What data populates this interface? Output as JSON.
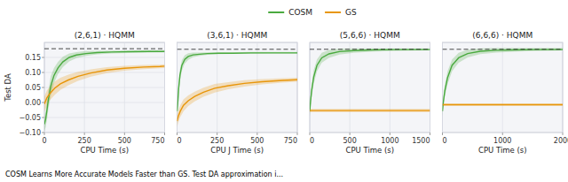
{
  "chart_data": [
    {
      "type": "line",
      "title": "(2,6,1) · HQMM",
      "x_label": "CPU Time (s)",
      "y_label": "Test DA",
      "caption": "COSM Learns More Accurate Models Faster than GS. Test DA approximation i...",
      "xlim": [
        0,
        750
      ],
      "xticks": [
        0,
        250,
        500,
        750
      ],
      "ylim": [
        -0.1,
        0.2
      ],
      "yticks": [
        {
          "value": -0.1,
          "label": "−0.10"
        },
        {
          "value": -0.05,
          "label": "−0.05"
        },
        {
          "value": 0.0,
          "label": "0.00"
        },
        {
          "value": 0.05,
          "label": "0.05"
        },
        {
          "value": 0.1,
          "label": "0.10"
        },
        {
          "value": 0.15,
          "label": "0.15"
        }
      ],
      "grid": true,
      "legend": "top",
      "hline": 0.179,
      "series": [
        {
          "name": "COSM",
          "color": "#4aaa3f",
          "x": [
            0,
            8,
            15,
            25,
            40,
            60,
            85,
            115,
            155,
            200,
            260,
            330,
            420,
            520,
            650,
            750
          ],
          "values": [
            -0.072,
            -0.055,
            -0.03,
            0.01,
            0.055,
            0.09,
            0.115,
            0.135,
            0.15,
            0.158,
            0.163,
            0.166,
            0.168,
            0.169,
            0.17,
            0.17
          ],
          "lower": [
            -0.095,
            -0.082,
            -0.062,
            -0.022,
            0.022,
            0.065,
            0.095,
            0.118,
            0.137,
            0.148,
            0.155,
            0.16,
            0.163,
            0.165,
            0.166,
            0.167
          ],
          "upper": [
            -0.05,
            -0.028,
            0.002,
            0.042,
            0.088,
            0.115,
            0.135,
            0.152,
            0.163,
            0.168,
            0.171,
            0.172,
            0.173,
            0.173,
            0.174,
            0.174
          ]
        },
        {
          "name": "GS",
          "color": "#e8960a",
          "x": [
            0,
            15,
            35,
            65,
            100,
            150,
            210,
            290,
            390,
            500,
            620,
            720,
            750
          ],
          "values": [
            -0.005,
            0.015,
            0.03,
            0.048,
            0.062,
            0.075,
            0.087,
            0.098,
            0.108,
            0.114,
            0.118,
            0.12,
            0.121
          ],
          "lower": [
            -0.03,
            -0.01,
            0.008,
            0.026,
            0.042,
            0.057,
            0.072,
            0.086,
            0.098,
            0.106,
            0.111,
            0.114,
            0.115
          ],
          "upper": [
            0.02,
            0.04,
            0.052,
            0.07,
            0.082,
            0.093,
            0.102,
            0.11,
            0.118,
            0.122,
            0.125,
            0.126,
            0.127
          ]
        }
      ]
    },
    {
      "type": "line",
      "title": "(3,6,1) · HQMM",
      "x_label": "CPU J Time (s)",
      "xlim": [
        0,
        750
      ],
      "xticks": [
        0,
        250,
        500,
        750
      ],
      "ylim": [
        -0.075,
        0.2
      ],
      "yticks": [],
      "tick_labels": "x",
      "grid": true,
      "hline": 0.179,
      "series": [
        {
          "name": "COSM",
          "color": "#4aaa3f",
          "x": [
            0,
            5,
            10,
            18,
            30,
            48,
            70,
            100,
            140,
            190,
            260,
            350,
            460,
            590,
            730,
            750
          ],
          "values": [
            -0.01,
            0.02,
            0.06,
            0.1,
            0.13,
            0.148,
            0.157,
            0.162,
            0.164,
            0.166,
            0.167,
            0.167,
            0.168,
            0.168,
            0.168,
            0.168
          ],
          "lower": [
            -0.025,
            0.005,
            0.042,
            0.082,
            0.114,
            0.135,
            0.147,
            0.155,
            0.159,
            0.162,
            0.164,
            0.165,
            0.165,
            0.166,
            0.166,
            0.166
          ],
          "upper": [
            0.005,
            0.035,
            0.078,
            0.118,
            0.146,
            0.161,
            0.167,
            0.169,
            0.169,
            0.17,
            0.17,
            0.17,
            0.171,
            0.171,
            0.171,
            0.171
          ]
        },
        {
          "name": "GS",
          "color": "#e8960a",
          "x": [
            0,
            8,
            20,
            40,
            70,
            110,
            165,
            235,
            320,
            420,
            530,
            660,
            750
          ],
          "values": [
            -0.04,
            -0.025,
            -0.01,
            0.008,
            0.022,
            0.035,
            0.048,
            0.06,
            0.068,
            0.075,
            0.08,
            0.084,
            0.086
          ],
          "lower": [
            -0.058,
            -0.043,
            -0.028,
            -0.01,
            0.006,
            0.02,
            0.034,
            0.047,
            0.057,
            0.065,
            0.072,
            0.077,
            0.08
          ],
          "upper": [
            -0.022,
            -0.007,
            0.008,
            0.026,
            0.038,
            0.05,
            0.062,
            0.073,
            0.079,
            0.085,
            0.088,
            0.091,
            0.092
          ]
        }
      ]
    },
    {
      "type": "line",
      "title": "(5,6,6) · HQMM",
      "x_label": "CPU Time (s)",
      "xlim": [
        0,
        1500
      ],
      "xticks": [
        0,
        500,
        1000,
        1500
      ],
      "ylim": [
        -0.075,
        0.2
      ],
      "yticks": [],
      "tick_labels": "x",
      "grid": true,
      "hline": 0.179,
      "series": [
        {
          "name": "COSM",
          "color": "#4aaa3f",
          "x": [
            0,
            10,
            25,
            50,
            90,
            150,
            240,
            370,
            550,
            780,
            1050,
            1300,
            1500
          ],
          "values": [
            -0.01,
            0.02,
            0.055,
            0.095,
            0.13,
            0.153,
            0.165,
            0.172,
            0.175,
            0.177,
            0.178,
            0.178,
            0.178
          ],
          "lower": [
            -0.025,
            0.004,
            0.036,
            0.074,
            0.112,
            0.138,
            0.153,
            0.163,
            0.168,
            0.172,
            0.174,
            0.175,
            0.176
          ],
          "upper": [
            0.005,
            0.036,
            0.074,
            0.116,
            0.148,
            0.168,
            0.177,
            0.181,
            0.182,
            0.182,
            0.182,
            0.182,
            0.182
          ]
        },
        {
          "name": "GS",
          "color": "#e8960a",
          "x": [
            0,
            10,
            1500
          ],
          "values": [
            -0.008,
            -0.008,
            -0.008
          ],
          "lower": [
            -0.013,
            -0.013,
            -0.013
          ],
          "upper": [
            -0.003,
            -0.003,
            -0.003
          ]
        }
      ]
    },
    {
      "type": "line",
      "title": "(6,6,6) · HQMM",
      "x_label": "CPU Time (s)",
      "xlim": [
        0,
        2000
      ],
      "xticks": [
        0,
        1000,
        2000
      ],
      "ylim": [
        -0.075,
        0.2
      ],
      "yticks": [],
      "tick_labels": "x",
      "grid": true,
      "hline": 0.179,
      "series": [
        {
          "name": "COSM",
          "color": "#4aaa3f",
          "x": [
            0,
            15,
            40,
            85,
            160,
            270,
            420,
            630,
            900,
            1200,
            1550,
            1900,
            2000
          ],
          "values": [
            -0.01,
            0.018,
            0.052,
            0.092,
            0.13,
            0.153,
            0.166,
            0.173,
            0.176,
            0.177,
            0.178,
            0.178,
            0.178
          ],
          "lower": [
            -0.025,
            0.002,
            0.034,
            0.072,
            0.112,
            0.138,
            0.154,
            0.164,
            0.169,
            0.172,
            0.174,
            0.175,
            0.176
          ],
          "upper": [
            0.005,
            0.034,
            0.07,
            0.112,
            0.148,
            0.168,
            0.178,
            0.182,
            0.183,
            0.183,
            0.183,
            0.183,
            0.183
          ]
        },
        {
          "name": "GS",
          "color": "#e8960a",
          "x": [
            0,
            15,
            2000
          ],
          "values": [
            0.01,
            0.01,
            0.01
          ],
          "lower": [
            0.006,
            0.006,
            0.006
          ],
          "upper": [
            0.014,
            0.014,
            0.014
          ]
        }
      ]
    }
  ]
}
